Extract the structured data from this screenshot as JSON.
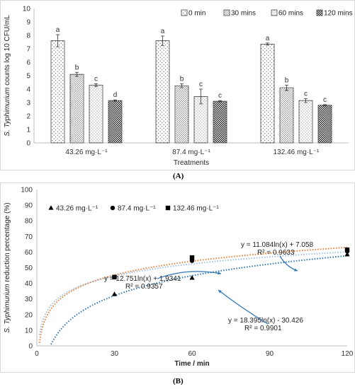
{
  "panels": {
    "a_label": "(A)",
    "b_label": "(B)"
  },
  "chart_data": [
    {
      "type": "bar",
      "ylabel_italic": "S. Typhimurium",
      "ylabel_rest": " counts log 10 CFU/mL",
      "xlabel": "Treatments",
      "ylim": [
        0,
        10
      ],
      "yticks": [
        0,
        1,
        2,
        3,
        4,
        5,
        6,
        7,
        8,
        9,
        10
      ],
      "categories": [
        "43.26 mg·L⁻¹",
        "87.4 mg·L⁻¹",
        "132.46 mg·L⁻¹"
      ],
      "legend_position": "top",
      "series": [
        {
          "name": "0 min",
          "values": [
            7.6,
            7.6,
            7.35
          ],
          "errors": [
            0.45,
            0.35,
            0.08
          ],
          "letters": [
            "a",
            "a",
            "a"
          ],
          "pattern": "dots-sparse"
        },
        {
          "name": "30 mins",
          "values": [
            5.1,
            4.25,
            4.1
          ],
          "errors": [
            0.15,
            0.15,
            0.2
          ],
          "letters": [
            "b",
            "b",
            "b"
          ],
          "pattern": "dots-dense"
        },
        {
          "name": "60 mins",
          "values": [
            4.3,
            3.45,
            3.15
          ],
          "errors": [
            0.1,
            0.55,
            0.15
          ],
          "letters": [
            "c",
            "c",
            "c"
          ],
          "pattern": "dots-fine"
        },
        {
          "name": "120 mins",
          "values": [
            3.15,
            3.1,
            2.8
          ],
          "errors": [
            0.05,
            0.05,
            0.05
          ],
          "letters": [
            "d",
            "c",
            "c"
          ],
          "pattern": "checker"
        }
      ]
    },
    {
      "type": "scatter",
      "ylabel_italic": "S. Typhimurium",
      "ylabel_rest": " reduction percentage (%)",
      "xlabel": "Time / min",
      "xlim": [
        0,
        120
      ],
      "ylim": [
        0,
        100
      ],
      "xticks": [
        0,
        30,
        60,
        90,
        120
      ],
      "yticks": [
        0,
        10,
        20,
        30,
        40,
        50,
        60,
        70,
        80,
        90,
        100
      ],
      "legend_position": "top-left",
      "series": [
        {
          "name": "43.26 mg·L⁻¹",
          "marker": "triangle",
          "x": [
            30,
            60,
            120
          ],
          "y": [
            33,
            43.5,
            58.5
          ],
          "fit": {
            "a": 18.395,
            "b": -30.426
          },
          "fit_color": "#2e75b6",
          "equation": "y = 18.395ln(x) - 30.426",
          "r2": "R² = 0.9901"
        },
        {
          "name": "87.4 mg·L⁻¹",
          "marker": "circle",
          "x": [
            30,
            60,
            120
          ],
          "y": [
            44,
            54.5,
            60.5
          ],
          "fit": {
            "a": 12.751,
            "b": 1.9341
          },
          "fit_color": "#ed7d31",
          "equation": "y = 12.751ln(x) + 1.9341",
          "r2": "R² = 0.9357"
        },
        {
          "name": "132.46 mg·L⁻¹",
          "marker": "square",
          "x": [
            30,
            60,
            120
          ],
          "y": [
            44,
            56.5,
            61.5
          ],
          "fit": {
            "a": 11.084,
            "b": 7.058
          },
          "fit_color": "#9dc3e6",
          "equation": "y = 11.084ln(x) + 7.058",
          "r2": "R² = 0.9633"
        }
      ]
    }
  ]
}
